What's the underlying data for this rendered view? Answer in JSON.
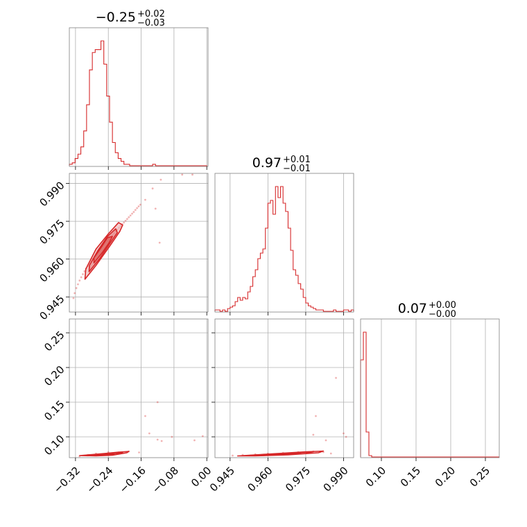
{
  "colors": {
    "series": "#d62728",
    "grid": "#b0b0b0",
    "frame": "#808080",
    "contour_fill": "#e9a9a9"
  },
  "chart_data": {
    "type": "corner",
    "grid": true,
    "parameters": [
      {
        "title": {
          "median": "−0.25",
          "upper": "+0.02",
          "lower": "−0.03"
        },
        "range": [
          -0.335,
          0.003
        ],
        "ticks": [
          -0.32,
          -0.24,
          -0.16,
          -0.08,
          0.0
        ],
        "tick_labels": [
          "−0.32",
          "−0.24",
          "−0.16",
          "−0.08",
          "0.00"
        ],
        "histogram": {
          "bin_start": -0.335,
          "bin_width": 0.007,
          "counts": [
            1,
            2,
            5,
            8,
            13,
            24,
            42,
            66,
            78,
            80,
            80,
            86,
            70,
            48,
            30,
            16,
            9,
            5,
            3,
            1,
            1,
            0,
            0,
            0,
            0,
            0,
            0,
            0,
            0,
            1,
            0,
            0,
            0,
            0,
            0,
            0,
            0,
            0,
            0,
            0,
            0,
            0,
            0,
            0,
            0,
            0,
            0,
            0
          ]
        }
      },
      {
        "title": {
          "median": "0.97",
          "upper": "+0.01",
          "lower": "−0.01"
        },
        "range": [
          0.939,
          0.994
        ],
        "ticks": [
          0.945,
          0.96,
          0.975,
          0.99
        ],
        "tick_labels": [
          "0.945",
          "0.960",
          "0.975",
          "0.990"
        ],
        "histogram": {
          "bin_start": 0.939,
          "bin_width": 0.001,
          "counts": [
            1,
            1,
            0,
            1,
            0,
            2,
            3,
            4,
            7,
            10,
            8,
            10,
            9,
            14,
            18,
            25,
            30,
            38,
            42,
            45,
            60,
            78,
            80,
            70,
            90,
            82,
            90,
            78,
            72,
            60,
            44,
            30,
            26,
            20,
            16,
            10,
            6,
            4,
            3,
            2,
            1,
            1,
            1,
            0,
            0,
            0,
            0,
            1,
            0,
            0,
            0,
            1,
            1,
            0,
            1
          ]
        }
      },
      {
        "title": {
          "median": "0.07",
          "upper": "+0.00",
          "lower": "−0.00"
        },
        "range": [
          0.07,
          0.27
        ],
        "ticks": [
          0.1,
          0.15,
          0.2,
          0.25
        ],
        "tick_labels": [
          "0.10",
          "0.15",
          "0.20",
          "0.25"
        ],
        "histogram": {
          "bin_start": 0.07,
          "bin_width": 0.004,
          "counts": [
            70,
            90,
            18,
            1,
            0,
            0,
            0,
            0,
            0,
            0,
            0,
            0,
            0,
            0,
            0,
            0,
            0,
            0,
            0,
            0,
            0,
            0,
            0,
            0,
            0,
            0,
            0,
            0,
            0,
            0,
            0,
            0,
            0,
            0,
            0,
            0,
            0,
            0,
            0,
            0,
            0,
            0,
            0,
            0,
            0,
            0,
            0,
            0,
            0,
            0
          ]
        }
      }
    ],
    "pairs": [
      {
        "x_param": 0,
        "y_param": 1,
        "points": [
          [
            -0.325,
            0.9445
          ],
          [
            -0.322,
            0.9465
          ],
          [
            -0.318,
            0.9485
          ],
          [
            -0.314,
            0.95
          ],
          [
            -0.31,
            0.9515
          ],
          [
            -0.306,
            0.9528
          ],
          [
            -0.302,
            0.954
          ],
          [
            -0.298,
            0.9552
          ],
          [
            -0.294,
            0.9563
          ],
          [
            -0.29,
            0.9572
          ],
          [
            -0.286,
            0.9582
          ],
          [
            -0.282,
            0.9592
          ],
          [
            -0.278,
            0.9601
          ],
          [
            -0.274,
            0.961
          ],
          [
            -0.27,
            0.9618
          ],
          [
            -0.266,
            0.9626
          ],
          [
            -0.262,
            0.9634
          ],
          [
            -0.258,
            0.9642
          ],
          [
            -0.254,
            0.965
          ],
          [
            -0.25,
            0.9657
          ],
          [
            -0.246,
            0.9664
          ],
          [
            -0.242,
            0.9672
          ],
          [
            -0.238,
            0.968
          ],
          [
            -0.234,
            0.9688
          ],
          [
            -0.23,
            0.9695
          ],
          [
            -0.226,
            0.9702
          ],
          [
            -0.222,
            0.971
          ],
          [
            -0.218,
            0.9717
          ],
          [
            -0.214,
            0.9724
          ],
          [
            -0.21,
            0.9731
          ],
          [
            -0.206,
            0.9738
          ],
          [
            -0.202,
            0.9745
          ],
          [
            -0.198,
            0.9752
          ],
          [
            -0.194,
            0.9759
          ],
          [
            -0.19,
            0.9766
          ],
          [
            -0.186,
            0.9773
          ],
          [
            -0.182,
            0.978
          ],
          [
            -0.178,
            0.9787
          ],
          [
            -0.174,
            0.9795
          ],
          [
            -0.17,
            0.9802
          ],
          [
            -0.166,
            0.9809
          ],
          [
            -0.162,
            0.9816
          ],
          [
            -0.15,
            0.9835
          ],
          [
            -0.132,
            0.988
          ],
          [
            -0.112,
            0.9915
          ],
          [
            -0.06,
            0.9935
          ],
          [
            -0.035,
            0.9935
          ],
          [
            -0.115,
            0.9665
          ],
          [
            -0.125,
            0.98
          ]
        ],
        "contours": [
          [
            [
              -0.297,
              0.952
            ],
            [
              -0.27,
              0.9575
            ],
            [
              -0.235,
              0.9655
            ],
            [
              -0.212,
              0.971
            ],
            [
              -0.205,
              0.9735
            ],
            [
              -0.215,
              0.9745
            ],
            [
              -0.24,
              0.97
            ],
            [
              -0.27,
              0.964
            ],
            [
              -0.295,
              0.956
            ]
          ],
          [
            [
              -0.287,
              0.955
            ],
            [
              -0.262,
              0.96
            ],
            [
              -0.235,
              0.9665
            ],
            [
              -0.218,
              0.9705
            ],
            [
              -0.222,
              0.972
            ],
            [
              -0.242,
              0.969
            ],
            [
              -0.265,
              0.9635
            ],
            [
              -0.286,
              0.9575
            ]
          ],
          [
            [
              -0.275,
              0.9585
            ],
            [
              -0.255,
              0.9625
            ],
            [
              -0.238,
              0.9665
            ],
            [
              -0.23,
              0.969
            ],
            [
              -0.242,
              0.9685
            ],
            [
              -0.258,
              0.9645
            ],
            [
              -0.275,
              0.9605
            ]
          ]
        ]
      },
      {
        "x_param": 0,
        "y_param": 2,
        "points": [
          [
            -0.31,
            0.072
          ],
          [
            -0.29,
            0.074
          ],
          [
            -0.27,
            0.076
          ],
          [
            -0.24,
            0.078
          ],
          [
            -0.215,
            0.0775
          ],
          [
            -0.19,
            0.079
          ],
          [
            -0.165,
            0.0775
          ],
          [
            -0.14,
            0.105
          ],
          [
            -0.12,
            0.15
          ],
          [
            -0.12,
            0.096
          ],
          [
            -0.11,
            0.094
          ],
          [
            -0.085,
            0.1
          ],
          [
            -0.03,
            0.095
          ],
          [
            -0.01,
            0.101
          ],
          [
            -0.15,
            0.13
          ]
        ],
        "contours": [
          [
            [
              -0.31,
              0.073
            ],
            [
              -0.28,
              0.0745
            ],
            [
              -0.25,
              0.076
            ],
            [
              -0.215,
              0.078
            ],
            [
              -0.19,
              0.079
            ],
            [
              -0.195,
              0.077
            ],
            [
              -0.23,
              0.0735
            ],
            [
              -0.27,
              0.0725
            ]
          ],
          [
            [
              -0.295,
              0.0735
            ],
            [
              -0.26,
              0.0748
            ],
            [
              -0.23,
              0.0765
            ],
            [
              -0.205,
              0.0775
            ],
            [
              -0.225,
              0.0745
            ],
            [
              -0.26,
              0.073
            ]
          ],
          [
            [
              -0.27,
              0.074
            ],
            [
              -0.245,
              0.0752
            ],
            [
              -0.225,
              0.0762
            ],
            [
              -0.24,
              0.0742
            ]
          ]
        ]
      },
      {
        "x_param": 1,
        "y_param": 2,
        "points": [
          [
            0.946,
            0.073
          ],
          [
            0.95,
            0.074
          ],
          [
            0.955,
            0.075
          ],
          [
            0.96,
            0.076
          ],
          [
            0.966,
            0.077
          ],
          [
            0.972,
            0.078
          ],
          [
            0.978,
            0.079
          ],
          [
            0.982,
            0.078
          ],
          [
            0.985,
            0.076
          ],
          [
            0.978,
            0.103
          ],
          [
            0.979,
            0.13
          ],
          [
            0.987,
            0.185
          ],
          [
            0.99,
            0.105
          ],
          [
            0.991,
            0.1
          ],
          [
            0.983,
            0.095
          ]
        ],
        "contours": [
          [
            [
              0.948,
              0.0725
            ],
            [
              0.957,
              0.0745
            ],
            [
              0.966,
              0.0765
            ],
            [
              0.975,
              0.0785
            ],
            [
              0.982,
              0.0795
            ],
            [
              0.98,
              0.077
            ],
            [
              0.968,
              0.074
            ],
            [
              0.955,
              0.0725
            ]
          ],
          [
            [
              0.953,
              0.0735
            ],
            [
              0.962,
              0.075
            ],
            [
              0.971,
              0.0772
            ],
            [
              0.978,
              0.0785
            ],
            [
              0.975,
              0.076
            ],
            [
              0.963,
              0.0738
            ]
          ],
          [
            [
              0.958,
              0.0742
            ],
            [
              0.966,
              0.0756
            ],
            [
              0.973,
              0.077
            ],
            [
              0.969,
              0.075
            ]
          ]
        ]
      }
    ]
  }
}
